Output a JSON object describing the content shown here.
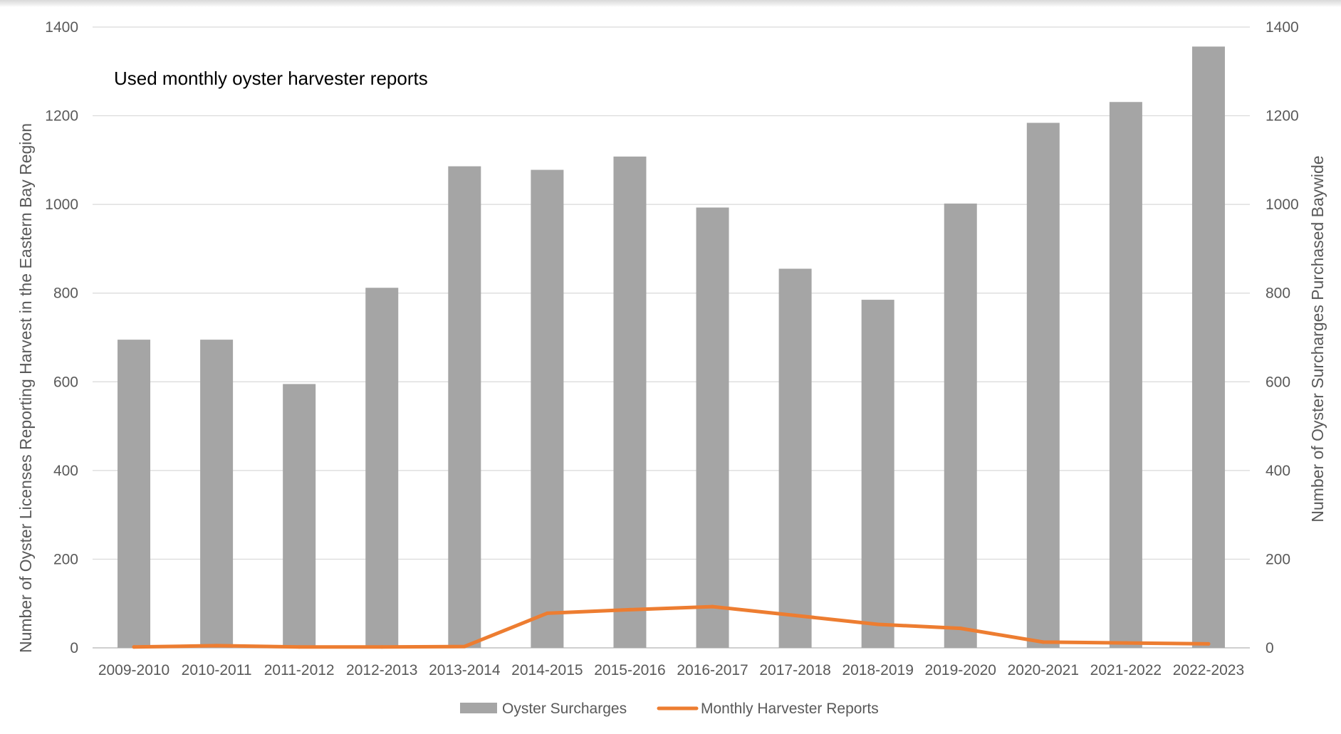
{
  "chart_data": {
    "type": "bar",
    "annotation": "Used monthly oyster harvester reports",
    "title": "",
    "ylabel_left": "Number of Oyster Licenses Reporting Harvest in the Eastern Bay Region",
    "ylabel_right": "Number of Oyster Surcharges Purchased Baywide",
    "ylim_left": [
      0,
      1400
    ],
    "ylim_right": [
      0,
      1400
    ],
    "yticks": [
      "0",
      "200",
      "400",
      "600",
      "800",
      "1000",
      "1200",
      "1400"
    ],
    "grid": true,
    "legend_position": "bottom",
    "categories": [
      "2009-2010",
      "2010-2011",
      "2011-2012",
      "2012-2013",
      "2013-2014",
      "2014-2015",
      "2015-2016",
      "2016-2017",
      "2017-2018",
      "2018-2019",
      "2019-2020",
      "2020-2021",
      "2021-2022",
      "2022-2023"
    ],
    "series": [
      {
        "name": "Oyster Surcharges",
        "type": "bar",
        "axis": "right",
        "color": "#a5a5a5",
        "values": [
          695,
          695,
          595,
          812,
          1086,
          1078,
          1108,
          993,
          855,
          785,
          1002,
          1184,
          1231,
          1356
        ]
      },
      {
        "name": "Monthly Harvester Reports",
        "type": "line",
        "axis": "left",
        "color": "#ed7d31",
        "values": [
          2,
          5,
          2,
          2,
          3,
          78,
          86,
          93,
          73,
          53,
          44,
          13,
          11,
          9
        ]
      }
    ]
  }
}
